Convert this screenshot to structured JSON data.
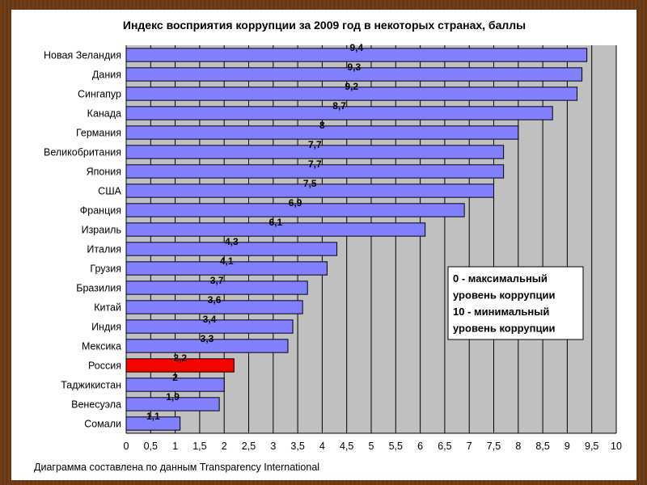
{
  "chart_data": {
    "type": "bar",
    "orientation": "horizontal",
    "title": "Индекс восприятия коррупции за 2009 год в некоторых странах, баллы",
    "categories": [
      "Новая Зеландия",
      "Дания",
      "Сингапур",
      "Канада",
      "Германия",
      "Великобритания",
      "Япония",
      "США",
      "Франция",
      "Израиль",
      "Италия",
      "Грузия",
      "Бразилия",
      "Китай",
      "Индия",
      "Мексика",
      "Россия",
      "Таджикистан",
      "Венесуэла",
      "Сомали"
    ],
    "values": [
      9.4,
      9.3,
      9.2,
      8.7,
      8.0,
      7.7,
      7.7,
      7.5,
      6.9,
      6.1,
      4.3,
      4.1,
      3.7,
      3.6,
      3.4,
      3.3,
      2.2,
      2.0,
      1.9,
      1.1
    ],
    "value_labels": [
      "9,4",
      "9,3",
      "9,2",
      "8,7",
      "8",
      "7,7",
      "7,7",
      "7,5",
      "6,9",
      "6,1",
      "4,3",
      "4,1",
      "3,7",
      "3,6",
      "3,4",
      "3,3",
      "2,2",
      "2",
      "1,9",
      "1,1"
    ],
    "highlight_index": 16,
    "xlim": [
      0,
      10
    ],
    "xticks": [
      "0",
      "0,5",
      "1",
      "1,5",
      "2",
      "2,5",
      "3",
      "3,5",
      "4",
      "4,5",
      "5",
      "5,5",
      "6",
      "6,5",
      "7",
      "7,5",
      "8",
      "8,5",
      "9",
      "9,5",
      "10"
    ],
    "grid": true,
    "legend_note": [
      "0 - максимальный",
      "уровень коррупции",
      "10 - минимальный",
      "уровень коррупции"
    ],
    "source": "Диаграмма составлена по данным Transparency International",
    "colors": {
      "bar": "#8080ff",
      "highlight": "#ff0000",
      "plot_bg": "#c0c0c0",
      "grid": "#000000"
    }
  }
}
